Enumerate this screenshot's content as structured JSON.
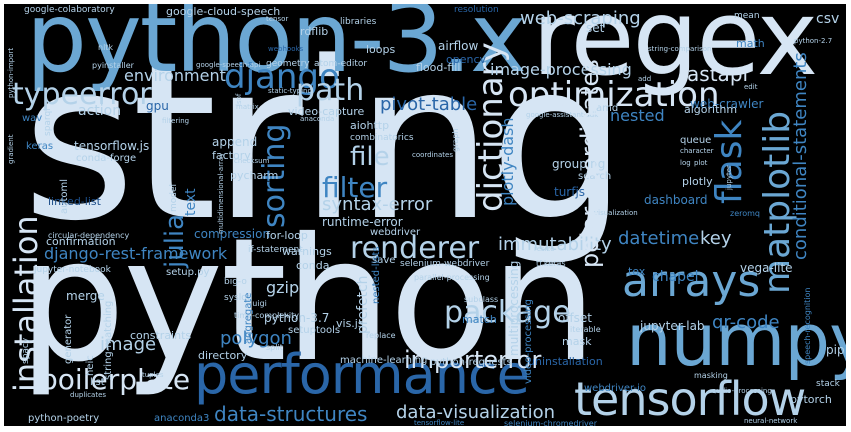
{
  "colors": {
    "background": "#000000",
    "frame": "#ffffff",
    "palette": [
      "#d6e5f4",
      "#b4d2e9",
      "#6ba7d3",
      "#3f85c2",
      "#2a66a8",
      "#1d4f8a"
    ]
  },
  "words": {
    "string": "string",
    "python": "python",
    "python_3x": "python-3.x",
    "regex": "regex",
    "numpy": "numpy",
    "performance": "performance",
    "tensorflow": "tensorflow",
    "arrays": "arrays",
    "matplotlib": "matplotlib",
    "optimization": "optimization",
    "django": "django",
    "typeerror": "typeerror",
    "path": "path",
    "flask": "flask",
    "dictionary": "dictionary",
    "installation": "installation",
    "renderer": "renderer",
    "package": "package",
    "boilerplate": "boilerplate",
    "importerror": "importerror",
    "filter": "filter",
    "file": "file",
    "sorting": "sorting",
    "julia": "julia",
    "data_structures": "data-structures",
    "data_visualization": "data-visualization",
    "image_processing": "image-processing",
    "web_scraping": "web-scraping",
    "environment": "environment",
    "fastapi": "fastapi",
    "pivot_table": "pivot-table",
    "syntax_error": "syntax-error",
    "polygon": "polygon",
    "image": "image",
    "django_rest_framework": "django-rest-framework",
    "immutability": "immutability",
    "datetime": "datetime",
    "key": "key",
    "qr_code": "qr-code",
    "conditional_statements": "conditional-statements",
    "polar_coordinates": "polar-coordinates",
    "plotly_dash": "plotly-dash",
    "action": "action",
    "nested": "nested",
    "gzip": "gzip",
    "chapel": "chapel",
    "csv": "csv",
    "airflow": "airflow",
    "opencv": "opencv",
    "flood_fill": "flood-fill",
    "loops": "loops",
    "rdflib": "rdflib",
    "google_cloud_speech": "google-cloud-speech",
    "google_colaboratory": "google-colaboratory",
    "resolution": "resolution",
    "libraries": "libraries",
    "geometry": "geometry",
    "atom_editor": "atom-editor",
    "web_crawler": "web-crawler",
    "algorithm": "algorithm",
    "queue": "queue",
    "amd": "amd",
    "tensorflow_js": "tensorflow.js",
    "conda_forge": "conda-forge",
    "append": "append",
    "factory": "factory",
    "pycharm": "pycharm",
    "video_capture": "video-capture",
    "compression": "compression",
    "for_loop": "for-loop",
    "runtime_error": "runtime-error",
    "webdriver": "webdriver",
    "warnings": "warnings",
    "conda": "conda",
    "save": "save",
    "selenium_webdriver": "selenium-webdriver",
    "confirmation": "confirmation",
    "linked_list": "linked-list",
    "setup_py": "setup.py",
    "python_3_7": "python-3.7",
    "vis_js": "vis.js",
    "setuptools": "setuptools",
    "merge": "merge",
    "heic": "heic",
    "string_matching": "string-matching",
    "constraints": "constraints",
    "directory": "directory",
    "machine_learning": "machine-learning",
    "python_requests": "python-requests",
    "uninstallation": "uninstallation",
    "list": "list",
    "python_poetry": "python-poetry",
    "anaconda3": "anaconda3",
    "match": "match",
    "offset": "offset",
    "mask": "mask",
    "jupyter_lab": "jupyter-lab",
    "vega_lite": "vega-lite",
    "tox": "tox",
    "pip": "pip",
    "pytorch": "pytorch",
    "stack": "stack",
    "grouping": "grouping",
    "search": "search",
    "plotly": "plotly",
    "dashboard": "dashboard",
    "turfjs": "turfjs",
    "set": "set",
    "math": "math",
    "mean": "mean",
    "aiohttp": "aiohttp",
    "combinatorics": "combinatorics",
    "graph": "graph",
    "gpu": "gpu",
    "keras": "keras",
    "sparql": "sparql",
    "wav": "wav",
    "automl": "automl",
    "text": "text",
    "model": "model",
    "prefetch": "prefetch",
    "multiprocessing": "multiprocessing",
    "aggregate": "aggregate",
    "video_processing": "video-processing",
    "nested_lists": "nested-lists",
    "if_statement": "if-statement",
    "syslog": "syslog",
    "generator": "generator",
    "spacy": "spacy",
    "luigi": "luigi",
    "big_o": "big-o",
    "time_complexity": "time-complexity",
    "subclass": "subclass",
    "split": "split",
    "replace": "replace",
    "iterable": "iterable",
    "jupyter_notebook": "jupyter-notebook",
    "circular_dependency": "circular-dependency",
    "parallel_processing": "parallel-processing",
    "tf_keras": "tf.keras",
    "speech_recognition": "speech-recognition",
    "webdriver_io": "webdriver-io",
    "masking": "masking",
    "audio_processing": "audio-processing",
    "neural_network": "neural-network",
    "tensorflow_lite": "tensorflow-lite",
    "selenium_chromedriver": "selenium-chromedriver",
    "duplicates": "duplicates",
    "tuples": "tuples",
    "python_2_7": "python-2.7",
    "python_import": "python-import",
    "pyinstaller": "pyinstaller",
    "nltk": "nltk",
    "tensor": "tensor",
    "google_speech_api": "google-speech-api",
    "static_typing": "static-typing",
    "string_comparison": "string-comparison",
    "matrix": "matrix",
    "anaconda": "anaconda",
    "filtering": "filtering",
    "google_assistant_sdk": "google-assistant-sdk",
    "checksum": "checksum",
    "visualization": "visualization",
    "zeromq": "zeromq",
    "character": "character",
    "plot": "plot",
    "jupyter": "jupyter",
    "coordinates": "coordinates",
    "multidimensional_array": "multidimensional-array",
    "gradient": "gradient",
    "add": "add",
    "edit": "edit",
    "log": "log",
    "resize": "resize",
    "lsof": "lsof",
    "webhooks": "webhooks"
  }
}
